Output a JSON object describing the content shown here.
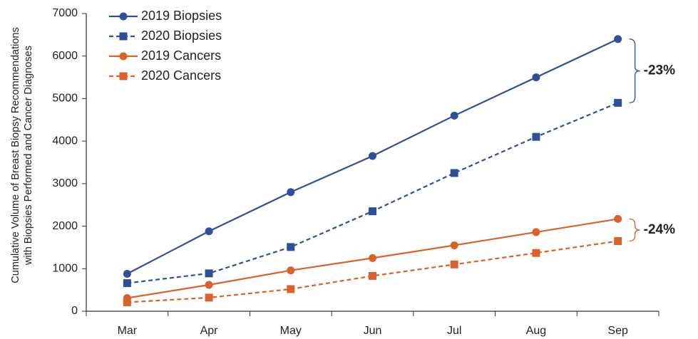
{
  "chart_data": {
    "type": "line",
    "ylabel": [
      "Cumulative Volume of Breast Biopsy Recommendations",
      "with Biopsies Performed and Cancer Diagnoses"
    ],
    "categories": [
      "Mar",
      "Apr",
      "May",
      "Jun",
      "Jul",
      "Aug",
      "Sep"
    ],
    "ylim": [
      0,
      7000
    ],
    "yticks": [
      0,
      1000,
      2000,
      3000,
      4000,
      5000,
      6000,
      7000
    ],
    "legend": "upper left",
    "series": [
      {
        "name": "2019 Biopsies",
        "color": "#2f4f99",
        "marker": "circle",
        "dashed": false,
        "values": [
          880,
          1880,
          2800,
          3650,
          4600,
          5500,
          6400
        ]
      },
      {
        "name": "2020 Biopsies",
        "color": "#2f4f99",
        "marker": "square",
        "dashed": true,
        "values": [
          660,
          890,
          1510,
          2350,
          3250,
          4100,
          4900
        ]
      },
      {
        "name": "2019 Cancers",
        "color": "#d9622b",
        "marker": "circle",
        "dashed": false,
        "values": [
          310,
          620,
          960,
          1250,
          1550,
          1860,
          2170
        ]
      },
      {
        "name": "2020 Cancers",
        "color": "#d9622b",
        "marker": "square",
        "dashed": true,
        "values": [
          210,
          320,
          520,
          830,
          1100,
          1370,
          1650
        ]
      }
    ],
    "annotations": [
      {
        "text": "-23%",
        "color": "#2f4f99"
      },
      {
        "text": "-24%",
        "color": "#d9622b"
      }
    ]
  }
}
